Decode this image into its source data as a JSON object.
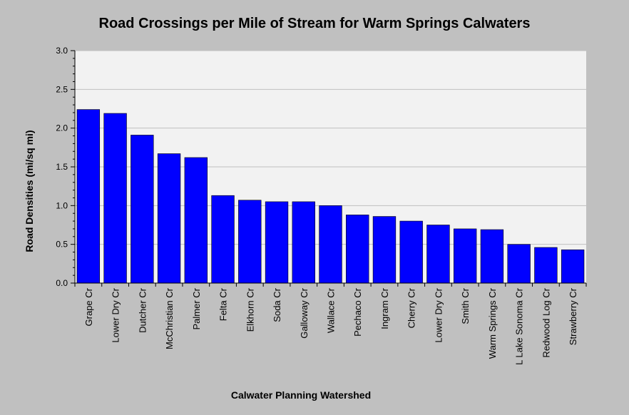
{
  "chart_data": {
    "type": "bar",
    "title": "Road Crossings per Mile of Stream for Warm Springs Calwaters",
    "xlabel": "Calwater Planning Watershed",
    "ylabel": "Road Densities (mi/sq mi)",
    "ylim": [
      0,
      3
    ],
    "yticks": [
      "0.0",
      "0.5",
      "1.0",
      "1.5",
      "2.0",
      "2.5",
      "3.0"
    ],
    "grid": true,
    "bar_color": "#0000ff",
    "categories": [
      "Grape Cr",
      "Lower Dry Cr",
      "Dutcher Cr",
      "McChristian Cr",
      "Palmer Cr",
      "Felta Cr",
      "Elkhorn Cr",
      "Soda Cr",
      "Galloway Cr",
      "Wallace Cr",
      "Pechaco Cr",
      "Ingram Cr",
      "Cherry Cr",
      "Lower Dry Cr",
      "Smith Cr",
      "Warm Springs Cr",
      "L Lake Sonoma Cr",
      "Redwood Log Cr",
      "Strawberry Cr"
    ],
    "values": [
      2.24,
      2.19,
      1.91,
      1.67,
      1.62,
      1.13,
      1.07,
      1.05,
      1.05,
      1.0,
      0.88,
      0.86,
      0.8,
      0.75,
      0.7,
      0.69,
      0.5,
      0.46,
      0.43
    ]
  }
}
